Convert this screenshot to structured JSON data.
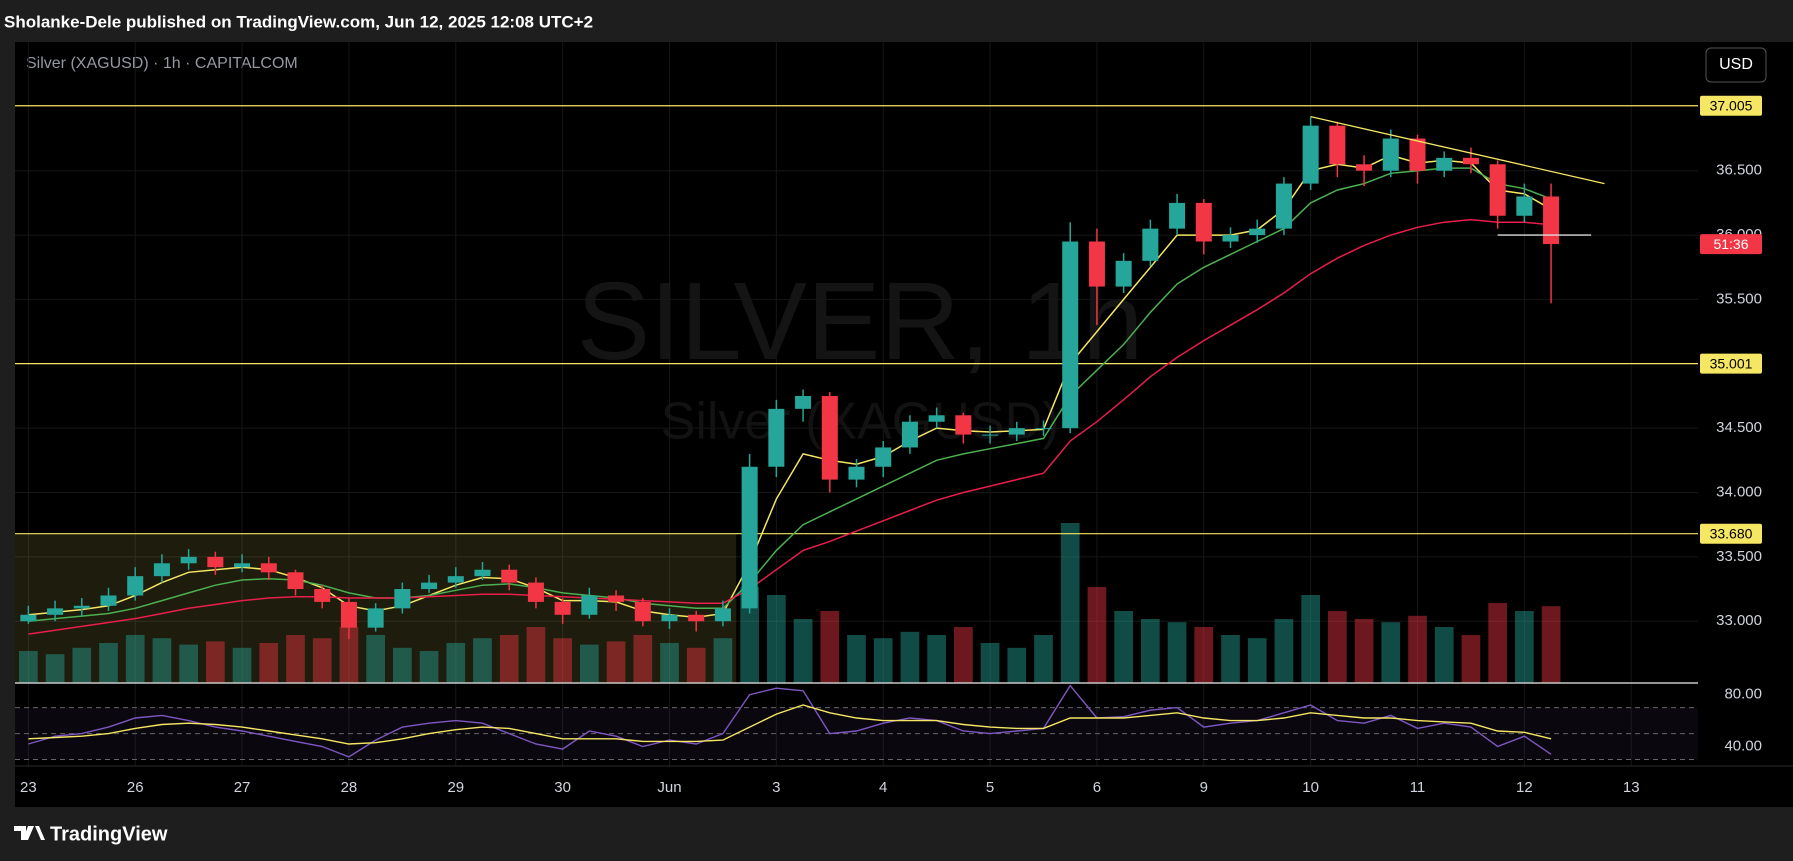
{
  "header": {
    "title": "Sholanke-Dele published on TradingView.com, Jun 12, 2025 12:08 UTC+2"
  },
  "footer": {
    "brand": "TradingView"
  },
  "chart_data": {
    "type": "candlestick",
    "legend": "Silver (XAGUSD) · 1h · CAPITALCOM",
    "watermark": [
      "SILVER, 1h",
      "Silver (XAGUSD)"
    ],
    "currency_button": "USD",
    "xlim": [
      -0.5,
      62.5
    ],
    "xticks": [
      {
        "value": 0,
        "label": "23"
      },
      {
        "value": 4,
        "label": "26"
      },
      {
        "value": 8,
        "label": "27"
      },
      {
        "value": 12,
        "label": "28"
      },
      {
        "value": 16,
        "label": "29"
      },
      {
        "value": 20,
        "label": "30"
      },
      {
        "value": 24,
        "label": "Jun"
      },
      {
        "value": 28,
        "label": "3"
      },
      {
        "value": 32,
        "label": "4"
      },
      {
        "value": 36,
        "label": "5"
      },
      {
        "value": 40,
        "label": "6"
      },
      {
        "value": 44,
        "label": "9"
      },
      {
        "value": 48,
        "label": "10"
      },
      {
        "value": 52,
        "label": "11"
      },
      {
        "value": 56,
        "label": "12"
      },
      {
        "value": 60,
        "label": "13"
      }
    ],
    "ylim": [
      32.52,
      37.5
    ],
    "yticks": [
      {
        "value": 33,
        "label": "33.000"
      },
      {
        "value": 33.5,
        "label": "33.500"
      },
      {
        "value": 34,
        "label": "34.000"
      },
      {
        "value": 34.5,
        "label": "34.500"
      },
      {
        "value": 35,
        "label": "35.000"
      },
      {
        "value": 35.5,
        "label": "35.500"
      },
      {
        "value": 36,
        "label": "36.000"
      },
      {
        "value": 36.5,
        "label": "36.500"
      }
    ],
    "up_color": "#26a69a",
    "down_color": "#f23645",
    "open": [
      33.0,
      33.05,
      33.1,
      33.12,
      33.2,
      33.35,
      33.45,
      33.5,
      33.42,
      33.45,
      33.38,
      33.25,
      33.15,
      32.95,
      33.1,
      33.25,
      33.3,
      33.35,
      33.4,
      33.3,
      33.15,
      33.05,
      33.2,
      33.15,
      33.0,
      33.05,
      33.0,
      33.1,
      34.2,
      34.65,
      34.75,
      34.1,
      34.2,
      34.35,
      34.55,
      34.6,
      34.45,
      34.45,
      34.5,
      34.5,
      35.95,
      35.6,
      35.8,
      36.05,
      36.25,
      35.95,
      36.0,
      36.05,
      36.4,
      36.85,
      36.55,
      36.5,
      36.75,
      36.5,
      36.6,
      36.55,
      36.15,
      36.3
    ],
    "high": [
      33.12,
      33.16,
      33.18,
      33.26,
      33.42,
      33.52,
      33.56,
      33.54,
      33.52,
      33.5,
      33.4,
      33.28,
      33.18,
      33.14,
      33.3,
      33.36,
      33.42,
      33.46,
      33.44,
      33.34,
      33.18,
      33.26,
      33.24,
      33.18,
      33.1,
      33.08,
      33.16,
      34.3,
      34.72,
      34.8,
      34.78,
      34.26,
      34.4,
      34.6,
      34.66,
      34.62,
      34.52,
      34.55,
      34.56,
      36.1,
      36.05,
      35.86,
      36.12,
      36.32,
      36.28,
      36.06,
      36.12,
      36.45,
      36.92,
      36.88,
      36.62,
      36.82,
      36.78,
      36.65,
      36.68,
      36.58,
      36.4,
      36.4
    ],
    "low": [
      32.98,
      33.0,
      33.04,
      33.08,
      33.16,
      33.3,
      33.4,
      33.36,
      33.38,
      33.32,
      33.2,
      33.1,
      32.86,
      32.92,
      33.06,
      33.22,
      33.26,
      33.32,
      33.24,
      33.1,
      32.98,
      33.02,
      33.08,
      32.96,
      32.94,
      32.92,
      32.96,
      33.06,
      34.12,
      34.55,
      34.0,
      34.04,
      34.12,
      34.3,
      34.5,
      34.38,
      34.38,
      34.4,
      34.44,
      34.46,
      35.3,
      35.55,
      35.76,
      36.0,
      35.85,
      35.9,
      35.94,
      36.0,
      36.35,
      36.45,
      36.38,
      36.45,
      36.4,
      36.45,
      36.48,
      36.05,
      36.1,
      35.47
    ],
    "close": [
      33.05,
      33.1,
      33.12,
      33.2,
      33.35,
      33.45,
      33.5,
      33.42,
      33.45,
      33.38,
      33.25,
      33.15,
      32.95,
      33.1,
      33.25,
      33.3,
      33.35,
      33.4,
      33.3,
      33.15,
      33.05,
      33.2,
      33.15,
      33.0,
      33.05,
      33.0,
      33.1,
      34.2,
      34.65,
      34.75,
      34.1,
      34.2,
      34.35,
      34.55,
      34.6,
      34.45,
      34.45,
      34.5,
      34.5,
      35.95,
      35.6,
      35.8,
      36.05,
      36.25,
      35.95,
      36.0,
      36.05,
      36.4,
      36.85,
      36.55,
      36.5,
      36.75,
      36.5,
      36.6,
      36.55,
      36.15,
      36.3,
      35.93
    ],
    "volume": [
      20,
      18,
      22,
      25,
      30,
      28,
      24,
      26,
      22,
      25,
      30,
      28,
      35,
      30,
      22,
      20,
      25,
      28,
      30,
      35,
      28,
      24,
      26,
      30,
      25,
      22,
      28,
      60,
      55,
      40,
      45,
      30,
      28,
      32,
      30,
      35,
      25,
      22,
      30,
      100,
      60,
      45,
      40,
      38,
      35,
      30,
      28,
      40,
      55,
      45,
      40,
      38,
      42,
      35,
      30,
      50,
      45,
      48
    ],
    "vlim": [
      0,
      100
    ],
    "ma": [
      {
        "name": "MA fast",
        "color": "#f5e663",
        "values": [
          33.05,
          33.07,
          33.09,
          33.12,
          33.2,
          33.3,
          33.38,
          33.4,
          33.42,
          33.4,
          33.34,
          33.26,
          33.12,
          33.08,
          33.12,
          33.2,
          33.28,
          33.34,
          33.33,
          33.26,
          33.16,
          33.16,
          33.15,
          33.08,
          33.05,
          33.03,
          33.06,
          33.45,
          33.95,
          34.3,
          34.25,
          34.22,
          34.28,
          34.4,
          34.5,
          34.48,
          34.47,
          34.48,
          34.49,
          35.0,
          35.25,
          35.5,
          35.75,
          36.0,
          36.0,
          36.0,
          36.04,
          36.2,
          36.5,
          36.55,
          36.52,
          36.62,
          36.56,
          36.58,
          36.56,
          36.35,
          36.32,
          36.2
        ]
      },
      {
        "name": "MA mid",
        "color": "#4caf50",
        "values": [
          33.0,
          33.02,
          33.04,
          33.06,
          33.1,
          33.16,
          33.22,
          33.28,
          33.32,
          33.33,
          33.32,
          33.28,
          33.22,
          33.18,
          33.18,
          33.2,
          33.24,
          33.28,
          33.29,
          33.26,
          33.22,
          33.2,
          33.18,
          33.14,
          33.12,
          33.1,
          33.1,
          33.3,
          33.55,
          33.75,
          33.85,
          33.95,
          34.05,
          34.15,
          34.25,
          34.3,
          34.34,
          34.38,
          34.42,
          34.75,
          34.95,
          35.15,
          35.4,
          35.62,
          35.75,
          35.85,
          35.95,
          36.05,
          36.25,
          36.35,
          36.4,
          36.48,
          36.5,
          36.52,
          36.52,
          36.4,
          36.36,
          36.28
        ]
      },
      {
        "name": "MA slow",
        "color": "#e91e4a",
        "values": [
          32.9,
          32.93,
          32.96,
          32.99,
          33.02,
          33.06,
          33.1,
          33.13,
          33.16,
          33.18,
          33.19,
          33.19,
          33.18,
          33.18,
          33.18,
          33.19,
          33.2,
          33.21,
          33.21,
          33.2,
          33.19,
          33.18,
          33.17,
          33.16,
          33.15,
          33.14,
          33.14,
          33.25,
          33.4,
          33.55,
          33.62,
          33.7,
          33.78,
          33.86,
          33.94,
          34.0,
          34.05,
          34.1,
          34.15,
          34.4,
          34.55,
          34.72,
          34.9,
          35.05,
          35.18,
          35.3,
          35.42,
          35.55,
          35.7,
          35.82,
          35.92,
          36.0,
          36.06,
          36.1,
          36.12,
          36.1,
          36.1,
          36.08
        ]
      }
    ],
    "levels": [
      {
        "value": 37.005,
        "label": "37.005"
      },
      {
        "value": 35.001,
        "label": "35.001"
      },
      {
        "value": 33.68,
        "label": "33.680"
      }
    ],
    "level_color": "#f5e663",
    "countdown": {
      "value": 35.93,
      "label": "51:36"
    },
    "drawings": {
      "trendline": {
        "x": [
          48,
          59
        ],
        "y": [
          36.92,
          36.4
        ]
      },
      "range_line": {
        "x": [
          55,
          58.5
        ],
        "y": [
          36.0,
          36.0
        ]
      },
      "zone": {
        "x": [
          -0.5,
          26.5
        ],
        "y": [
          32.52,
          33.68
        ]
      }
    },
    "rsi": {
      "ylim": [
        25,
        89
      ],
      "yticks": [
        {
          "value": 80,
          "label": "80.00"
        },
        {
          "value": 40,
          "label": "40.00"
        }
      ],
      "bands": [
        70,
        50,
        30
      ],
      "color": "#7e57c2",
      "signal_color": "#f5e663",
      "values": [
        42,
        48,
        50,
        55,
        62,
        64,
        60,
        55,
        52,
        48,
        44,
        40,
        32,
        45,
        55,
        58,
        60,
        58,
        50,
        42,
        38,
        52,
        48,
        40,
        45,
        42,
        50,
        80,
        85,
        83,
        50,
        52,
        58,
        62,
        60,
        52,
        50,
        52,
        54,
        87,
        62,
        63,
        68,
        70,
        55,
        58,
        60,
        66,
        72,
        60,
        58,
        64,
        54,
        58,
        55,
        40,
        48,
        34
      ],
      "signal": [
        46,
        47,
        48,
        50,
        54,
        57,
        58,
        57,
        55,
        52,
        49,
        46,
        42,
        43,
        46,
        50,
        53,
        55,
        54,
        50,
        46,
        46,
        46,
        44,
        44,
        44,
        45,
        55,
        65,
        72,
        66,
        62,
        60,
        60,
        60,
        57,
        55,
        54,
        54,
        62,
        62,
        62,
        64,
        66,
        62,
        60,
        60,
        62,
        66,
        64,
        62,
        62,
        60,
        59,
        58,
        52,
        51,
        46
      ]
    }
  }
}
